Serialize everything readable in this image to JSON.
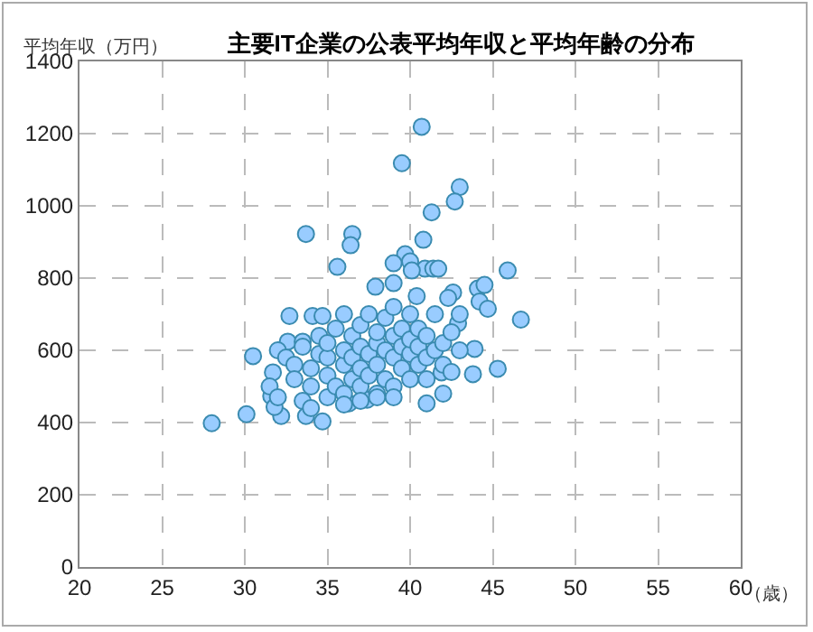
{
  "chart_data": {
    "type": "scatter",
    "title": "主要IT企業の公表平均年収と平均年齢の分布",
    "xlabel": "（歳）",
    "ylabel": "平均年収（万円）",
    "x": [
      40.7,
      39.5,
      43.0,
      42.7,
      41.3,
      33.7,
      36.5,
      36.4,
      40.8,
      39.7,
      35.6,
      40.9,
      45.9,
      39.0,
      40.0,
      40.1,
      41.4,
      41.7,
      37.9,
      39.0,
      44.1,
      44.5,
      42.6,
      42.3,
      40.4,
      44.2,
      44.7,
      46.7,
      42.9,
      43.9,
      45.3,
      43.8,
      41.9,
      32.7,
      34.1,
      34.7,
      30.5,
      31.7,
      32.6,
      33.5,
      28.0,
      30.1,
      31.6,
      32.2,
      33.7,
      34.7,
      31.8,
      41.0,
      36.3,
      37.4,
      32,
      32.5,
      33,
      33,
      33.5,
      34,
      34,
      34.5,
      34.5,
      35,
      35,
      35,
      35,
      35.5,
      35.5,
      36,
      36,
      36,
      36,
      36.5,
      36.5,
      36.5,
      37,
      37,
      37,
      37,
      37.5,
      37.5,
      37.5,
      38,
      38,
      38,
      38,
      38.5,
      38.5,
      38.5,
      39,
      39,
      39,
      39,
      39.5,
      39.5,
      39.5,
      40,
      40,
      40,
      40,
      40.5,
      40.5,
      40.5,
      41,
      41,
      41,
      41.5,
      41.5,
      42,
      42,
      42.5,
      42.5,
      43,
      43,
      33.5,
      34,
      36,
      37,
      38,
      39,
      31.5,
      32,
      42
    ],
    "values": [
      1219,
      1118,
      1052,
      1012,
      982,
      922,
      922,
      891,
      906,
      866,
      831,
      826,
      821,
      841,
      846,
      821,
      826,
      826,
      776,
      786,
      771,
      781,
      760,
      745,
      750,
      735,
      715,
      685,
      675,
      604,
      549,
      534,
      539,
      695,
      695,
      695,
      584,
      539,
      624,
      624,
      398,
      423,
      473,
      418,
      418,
      403,
      443,
      453,
      453,
      463,
      600,
      580,
      560,
      520,
      610,
      550,
      500,
      640,
      590,
      470,
      530,
      580,
      620,
      660,
      500,
      560,
      600,
      480,
      700,
      520,
      640,
      580,
      610,
      550,
      500,
      670,
      590,
      530,
      700,
      620,
      560,
      480,
      650,
      600,
      520,
      690,
      580,
      640,
      500,
      720,
      610,
      550,
      660,
      590,
      520,
      630,
      700,
      560,
      610,
      660,
      580,
      520,
      640,
      600,
      700,
      560,
      620,
      650,
      540,
      600,
      700,
      460,
      440,
      450,
      460,
      470,
      470,
      500,
      470,
      480
    ],
    "color": "#99ccff",
    "xlim": [
      20,
      60
    ],
    "ylim": [
      0,
      1400
    ],
    "xticks": [
      20,
      25,
      30,
      35,
      40,
      45,
      50,
      55,
      60
    ],
    "yticks": [
      0,
      200,
      400,
      600,
      800,
      1000,
      1200,
      1400
    ],
    "grid": true,
    "marker": "circle",
    "legend": false
  }
}
